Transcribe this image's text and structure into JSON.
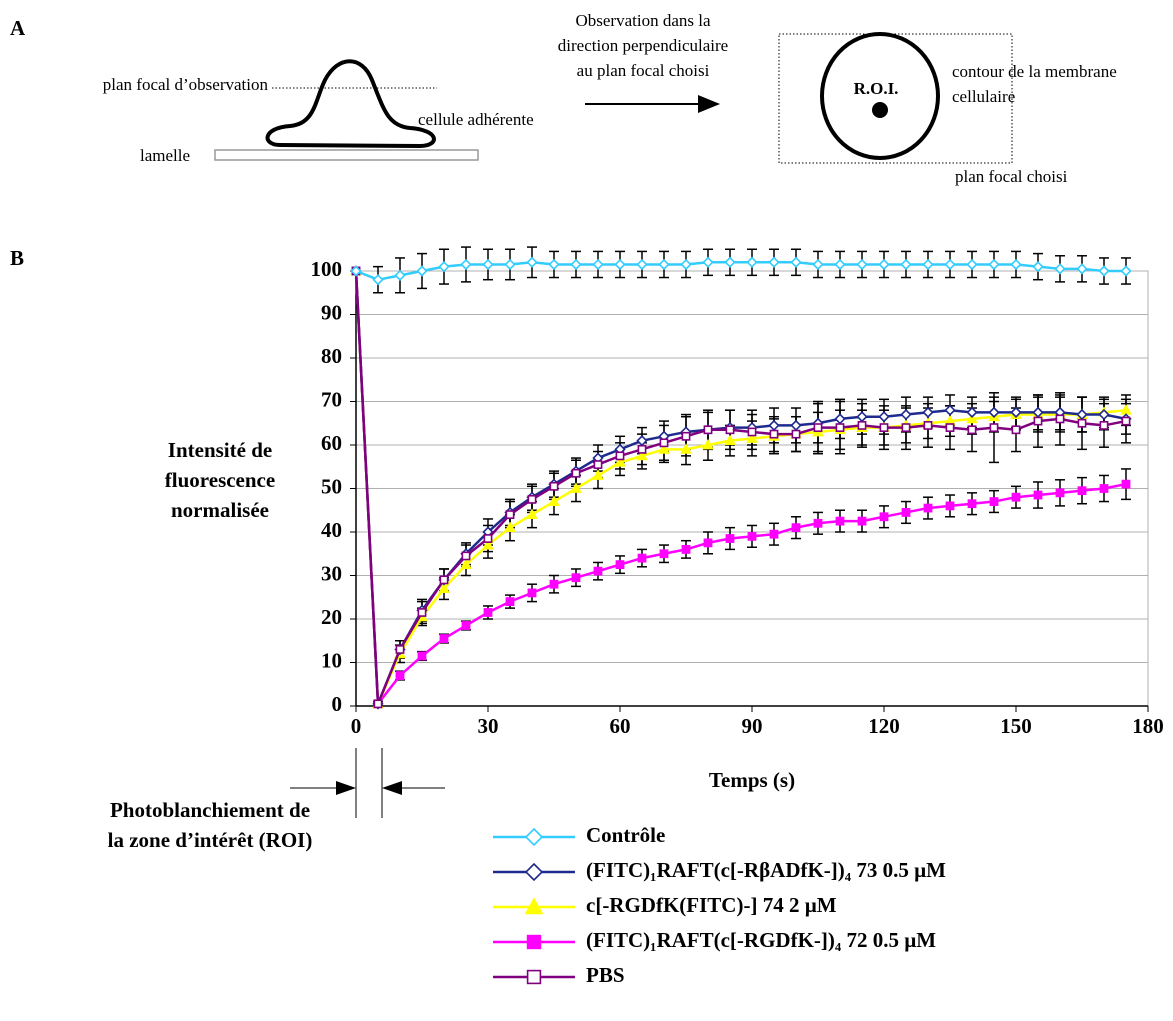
{
  "panel_a": {
    "label": "A",
    "focal_plane": "plan focal d’observation",
    "cell": "cellule adhérente",
    "coverslip": "lamelle",
    "observation": [
      "Observation dans la",
      "direction perpendiculaire",
      "au plan focal choisi"
    ],
    "roi": "R.O.I.",
    "membrane": [
      "contour de la membrane",
      "cellulaire"
    ],
    "chosen_plane": "plan focal choisi"
  },
  "panel_b_label": "B",
  "bleach_note": [
    "Photoblanchiement de",
    "la zone d’intérêt (ROI)"
  ],
  "chart_data": {
    "type": "line",
    "y_label": [
      "Intensité de",
      "fluorescence",
      "normalisée"
    ],
    "x_label": "Temps (s)",
    "x": [
      0,
      5,
      10,
      15,
      20,
      25,
      30,
      35,
      40,
      45,
      50,
      55,
      60,
      65,
      70,
      75,
      80,
      85,
      90,
      95,
      100,
      105,
      110,
      115,
      120,
      125,
      130,
      135,
      140,
      145,
      150,
      155,
      160,
      165,
      170,
      175
    ],
    "xlim": [
      0,
      180
    ],
    "xticks": [
      0,
      30,
      60,
      90,
      120,
      150,
      180
    ],
    "ylim": [
      0,
      100
    ],
    "yticks": [
      0,
      10,
      20,
      30,
      40,
      50,
      60,
      70,
      80,
      90,
      100
    ],
    "grid": true,
    "series": [
      {
        "name": "Contrôle",
        "color": "#33ccff",
        "marker": "diamond-open",
        "values": [
          100,
          98,
          99,
          100,
          101,
          101.5,
          101.5,
          101.5,
          102,
          101.5,
          101.5,
          101.5,
          101.5,
          101.5,
          101.5,
          101.5,
          102,
          102,
          102,
          102,
          102,
          101.5,
          101.5,
          101.5,
          101.5,
          101.5,
          101.5,
          101.5,
          101.5,
          101.5,
          101.5,
          101,
          100.5,
          100.5,
          100,
          100
        ],
        "errors": [
          0,
          3,
          4,
          4,
          4,
          4,
          3.5,
          3.5,
          3.5,
          3,
          3,
          3,
          3,
          3,
          3,
          3,
          3,
          3,
          3,
          3,
          3,
          3,
          3,
          3,
          3,
          3,
          3,
          3,
          3,
          3,
          3,
          3,
          3,
          3,
          3,
          3
        ]
      },
      {
        "name": "(FITC)₁RAFT(c[-RβADfK-])₄ 73 0.5 µM",
        "color": "#1f2a8f",
        "marker": "diamond-open",
        "values": [
          100,
          0.5,
          13,
          22,
          29,
          35,
          40,
          44.5,
          48,
          51,
          54,
          57,
          59,
          61,
          62,
          63,
          63.5,
          64,
          64,
          64.5,
          64.5,
          65,
          66,
          66.5,
          66.5,
          67,
          67.5,
          68,
          67.5,
          67.5,
          67.5,
          67.5,
          67.5,
          67,
          67,
          66
        ],
        "errors": [
          0,
          0.5,
          2,
          2.5,
          2.5,
          2.5,
          3,
          3,
          3,
          3,
          3,
          3,
          3,
          3,
          3.5,
          4,
          4,
          4,
          4,
          4,
          4,
          4.5,
          4.5,
          4,
          4,
          4,
          3.5,
          3.5,
          3.5,
          3.5,
          3.5,
          4,
          4,
          4,
          3.5,
          3.5
        ]
      },
      {
        "name": "c[-RGDfK(FITC)-] 74 2 µM",
        "color": "#ffff00",
        "marker": "triangle",
        "values": [
          100,
          0.5,
          12,
          20.5,
          27,
          32.5,
          37,
          41,
          44,
          47,
          50,
          53,
          56,
          57.5,
          59,
          59,
          60,
          61,
          61.5,
          62,
          62.5,
          63,
          63.5,
          64,
          64,
          64.5,
          65,
          65.5,
          66,
          66.5,
          67,
          67,
          67,
          67,
          67.5,
          68
        ],
        "errors": [
          0,
          0.5,
          2,
          2,
          2.5,
          2.5,
          3,
          3,
          3,
          3,
          3,
          3,
          3,
          3,
          3,
          3.5,
          3.5,
          3.5,
          4,
          4,
          4,
          4.5,
          4.5,
          4,
          4,
          4,
          3.5,
          3.5,
          3.5,
          3.5,
          3.5,
          4,
          4,
          4,
          3.5,
          3.5
        ]
      },
      {
        "name": "(FITC)₁RAFT(c[-RGDfK-])₄ 72 0.5 µM",
        "color": "#ff00ff",
        "marker": "square",
        "values": [
          100,
          0.5,
          7,
          11.5,
          15.5,
          18.5,
          21.5,
          24,
          26,
          28,
          29.5,
          31,
          32.5,
          34,
          35,
          36,
          37.5,
          38.5,
          39,
          39.5,
          41,
          42,
          42.5,
          42.5,
          43.5,
          44.5,
          45.5,
          46,
          46.5,
          47,
          48,
          48.5,
          49,
          49.5,
          50,
          51
        ],
        "errors": [
          0,
          0.5,
          1,
          1,
          1,
          1,
          1.5,
          1.5,
          2,
          2,
          2,
          2,
          2,
          2,
          2,
          2,
          2.5,
          2.5,
          2.5,
          2.5,
          2.5,
          2.5,
          2.5,
          2.5,
          2.5,
          2.5,
          2.5,
          2.5,
          2.5,
          2.5,
          2.5,
          3,
          3,
          3,
          3,
          3.5
        ]
      },
      {
        "name": "PBS",
        "color": "#800080",
        "marker": "square-open",
        "values": [
          100,
          0.5,
          13,
          21.5,
          29,
          34.5,
          38.5,
          44,
          47.5,
          50.5,
          53.5,
          55.5,
          57.5,
          59,
          60.5,
          62,
          63.5,
          63.5,
          63,
          62.5,
          62.5,
          64,
          64,
          64.5,
          64,
          64,
          64.5,
          64,
          63.5,
          64,
          63.5,
          65.5,
          66,
          65,
          64.5,
          65.5
        ],
        "errors": [
          0,
          0.5,
          2,
          2.5,
          2.5,
          2.5,
          3,
          3,
          3,
          3,
          3,
          3,
          3,
          3.5,
          4,
          4.5,
          4.5,
          4.5,
          4,
          4,
          4,
          6,
          6,
          5,
          5,
          5,
          5,
          5,
          5,
          8,
          5,
          6,
          6,
          6,
          5,
          5
        ]
      }
    ]
  }
}
